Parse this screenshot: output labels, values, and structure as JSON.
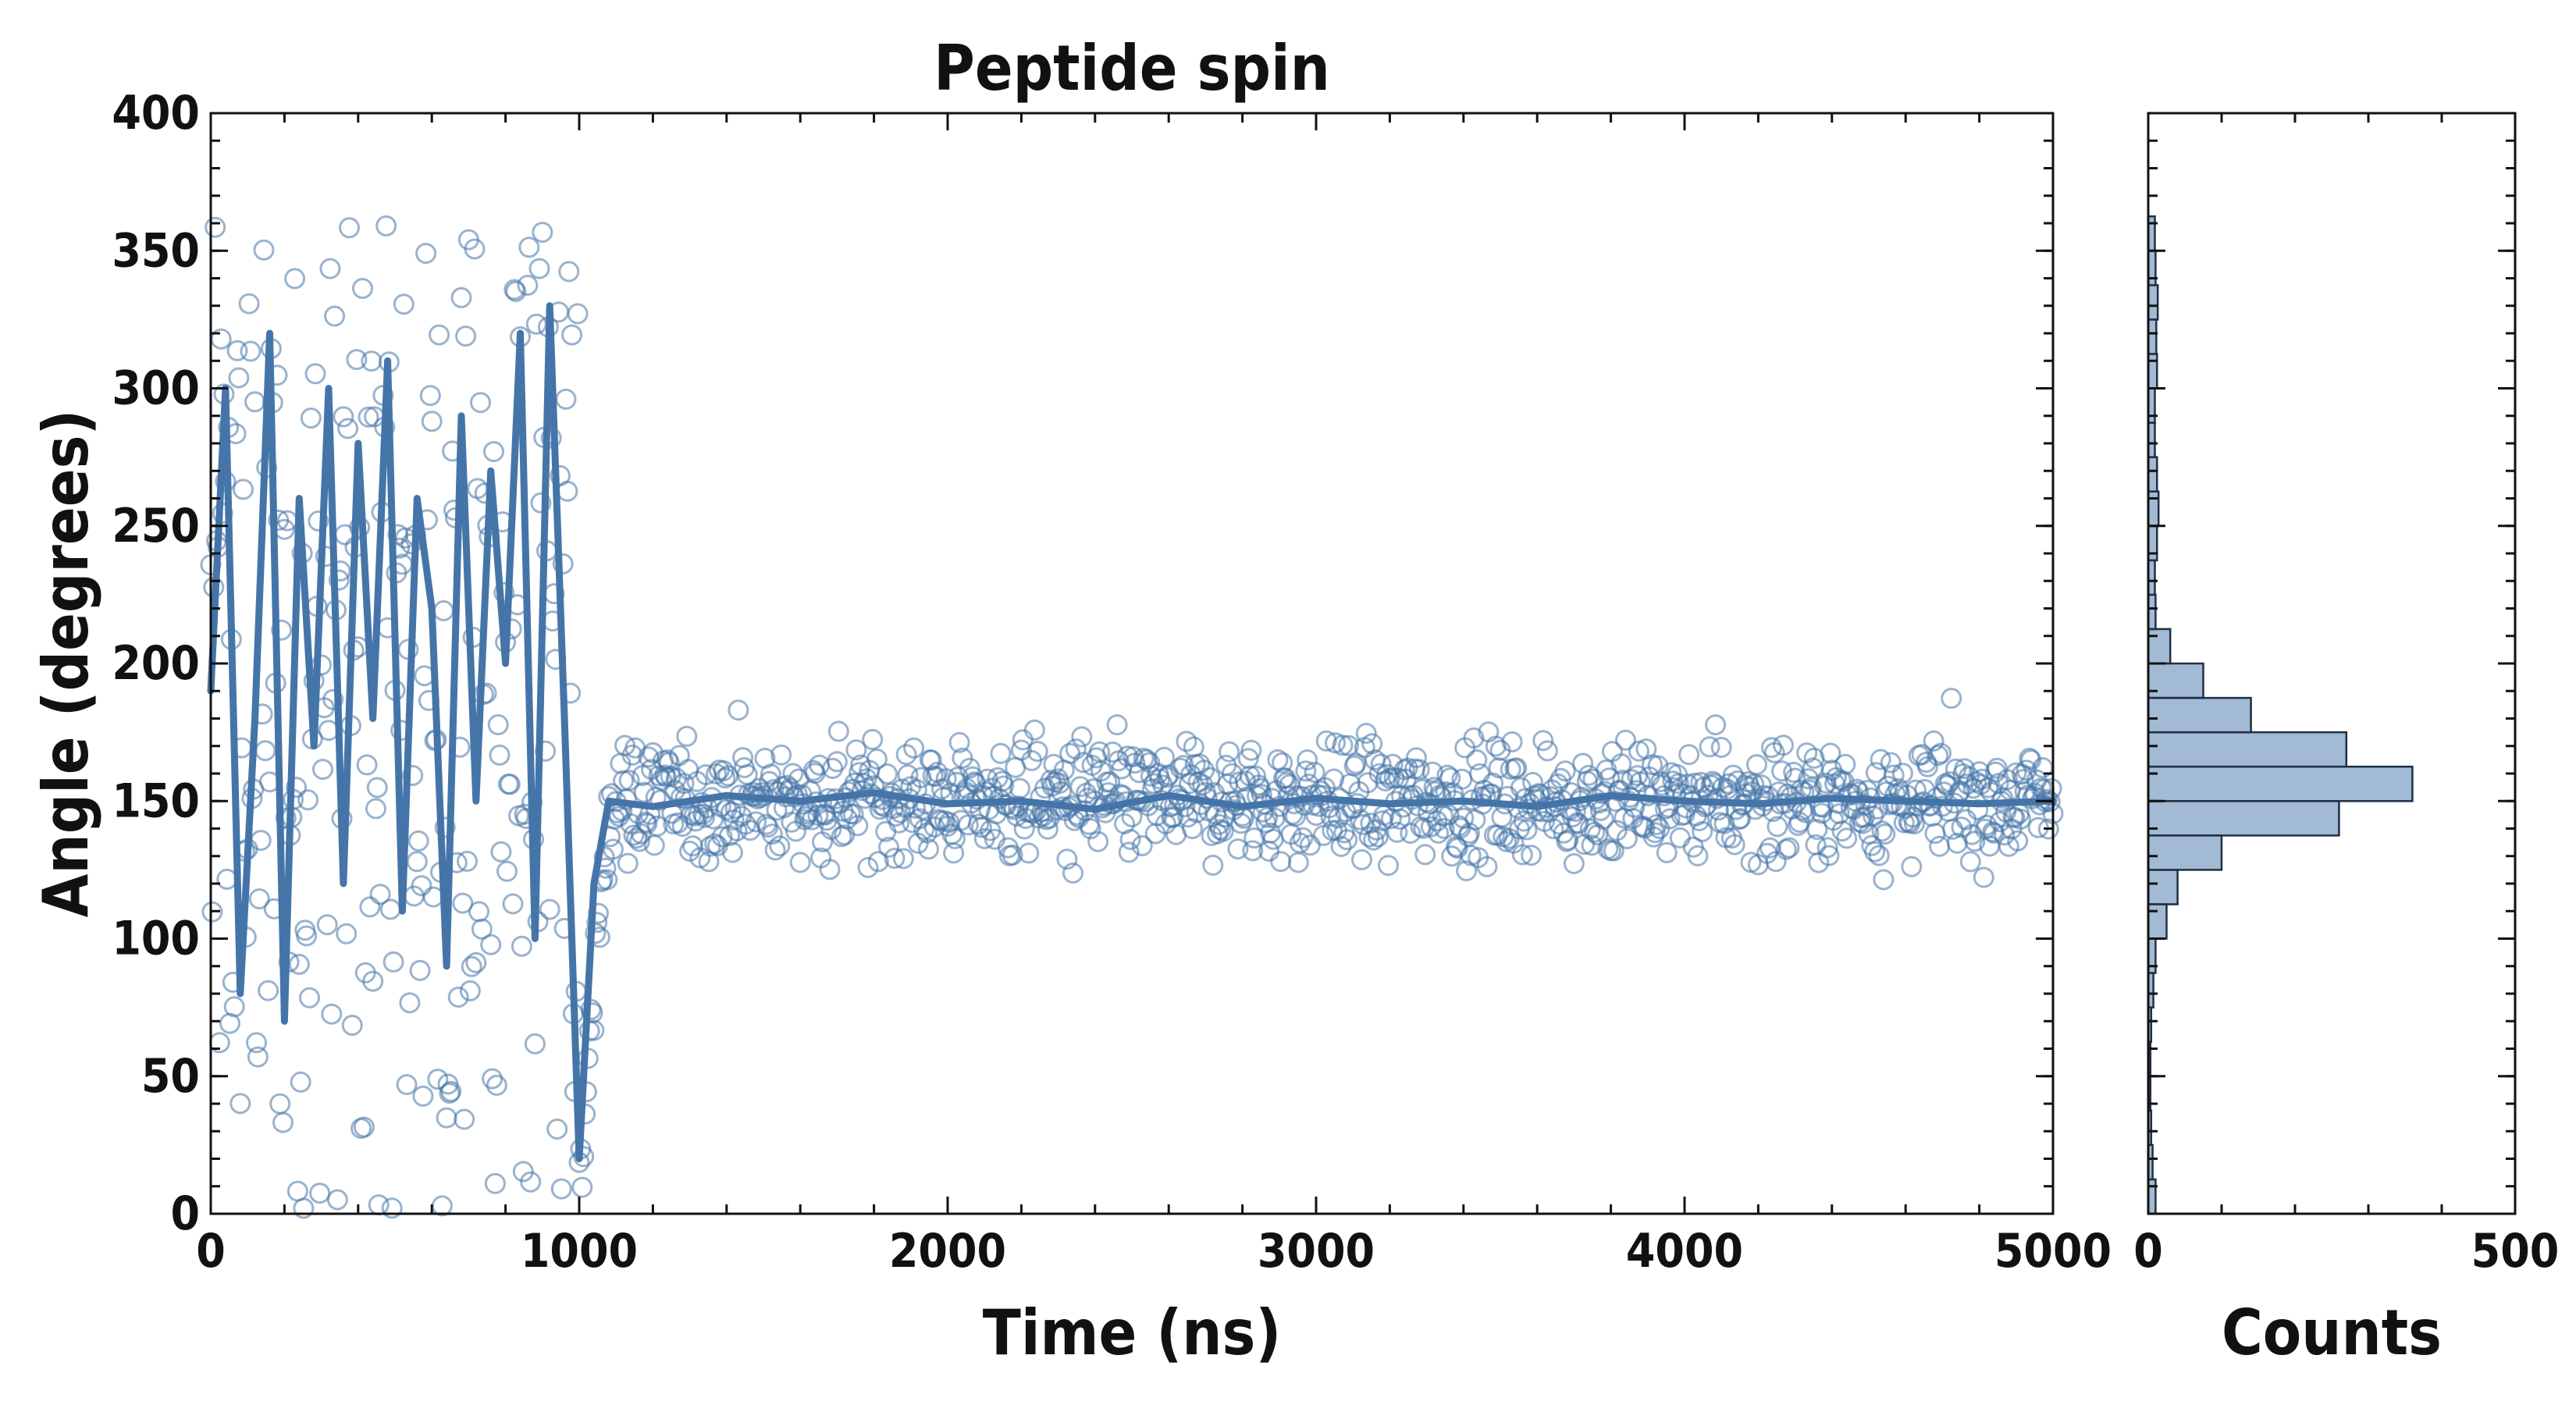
{
  "chart_data": [
    {
      "type": "scatter",
      "title": "Peptide spin",
      "xlabel": "Time (ns)",
      "ylabel": "Angle (degrees)",
      "xlim": [
        0,
        5000
      ],
      "ylim": [
        0,
        400
      ],
      "x_ticks": [
        "0",
        "1000",
        "2000",
        "3000",
        "4000",
        "5000"
      ],
      "y_ticks": [
        "0",
        "50",
        "100",
        "150",
        "200",
        "250",
        "300",
        "350",
        "400"
      ],
      "grid": false,
      "legend": "none",
      "marker": "open-circle",
      "series_color": "#4575a8",
      "segments": [
        {
          "x": [
            0,
            1000
          ],
          "behavior": "random spinning",
          "y_range": [
            0,
            360
          ]
        },
        {
          "x": [
            1000,
            1080
          ],
          "behavior": "rise",
          "y": [
            10,
            150
          ]
        },
        {
          "x": [
            1080,
            5000
          ],
          "behavior": "fluctuating around mean",
          "y_mean": 150,
          "y_range": [
            100,
            195
          ]
        }
      ],
      "moving_average": {
        "x": [
          0,
          40,
          80,
          120,
          160,
          200,
          240,
          280,
          320,
          360,
          400,
          440,
          480,
          520,
          560,
          600,
          640,
          680,
          720,
          760,
          800,
          840,
          880,
          920,
          960,
          1000,
          1040,
          1080,
          1200,
          1400,
          1600,
          1800,
          2000,
          2200,
          2400,
          2600,
          2800,
          3000,
          3200,
          3400,
          3600,
          3800,
          4000,
          4200,
          4400,
          4600,
          4800,
          5000
        ],
        "y": [
          190,
          300,
          80,
          180,
          320,
          70,
          260,
          170,
          300,
          120,
          280,
          180,
          310,
          110,
          260,
          220,
          90,
          290,
          150,
          270,
          200,
          320,
          100,
          330,
          180,
          20,
          120,
          150,
          148,
          152,
          150,
          153,
          149,
          150,
          147,
          152,
          148,
          151,
          149,
          150,
          148,
          152,
          150,
          149,
          151,
          150,
          149,
          150
        ]
      }
    },
    {
      "type": "bar",
      "orientation": "horizontal",
      "xlabel": "Counts",
      "xlim": [
        0,
        500
      ],
      "x_ticks": [
        "0",
        "500"
      ],
      "ylim": [
        0,
        400
      ],
      "bin_width": 12.5,
      "bins_start": [
        0,
        12.5,
        25,
        37.5,
        50,
        62.5,
        75,
        87.5,
        100,
        112.5,
        125,
        137.5,
        150,
        162.5,
        175,
        187.5,
        200,
        212.5,
        225,
        237.5,
        250,
        262.5,
        275,
        287.5,
        300,
        312.5,
        325,
        337.5,
        350,
        362.5,
        375,
        387.5
      ],
      "counts": [
        10,
        6,
        4,
        3,
        3,
        4,
        7,
        10,
        25,
        40,
        100,
        260,
        360,
        270,
        140,
        75,
        30,
        10,
        9,
        12,
        14,
        12,
        9,
        9,
        12,
        11,
        13,
        10,
        9,
        0,
        0,
        0
      ]
    }
  ]
}
